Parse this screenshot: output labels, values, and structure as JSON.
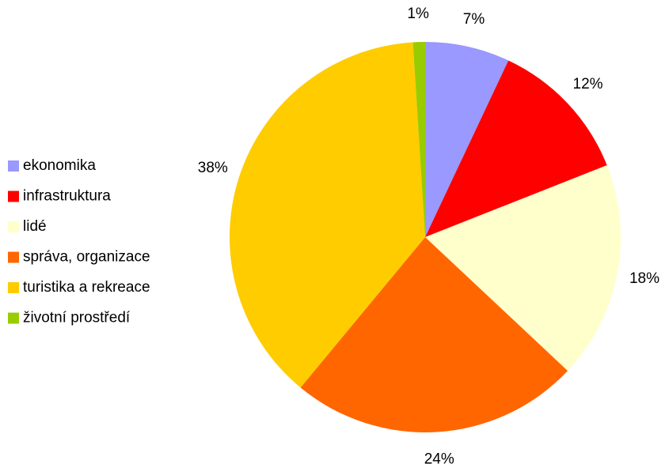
{
  "chart_data": {
    "type": "pie",
    "categories": [
      "ekonomika",
      "infrastruktura",
      "lidé",
      "správa, organizace",
      "turistika a rekreace",
      "životní prostředí"
    ],
    "values": [
      7,
      12,
      18,
      24,
      38,
      1
    ],
    "value_labels": [
      "7%",
      "12%",
      "18%",
      "24%",
      "38%",
      "1%"
    ],
    "colors": [
      "#9999ff",
      "#ff0000",
      "#ffffcc",
      "#ff6600",
      "#ffcc00",
      "#99cc00"
    ],
    "legend": "left"
  }
}
